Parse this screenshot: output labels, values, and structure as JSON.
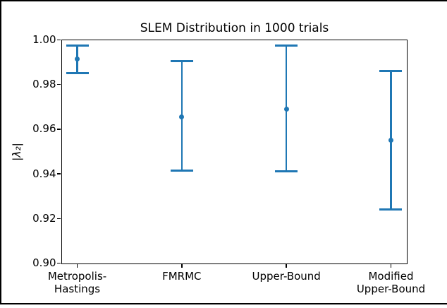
{
  "figure": {
    "background": "#ffffff",
    "border_color": "#000000"
  },
  "chart_data": {
    "type": "scatter",
    "subtype": "errorbar",
    "title": "SLEM Distribution in 1000 trials",
    "xlabel": "",
    "ylabel": "|λ₂|",
    "categories": [
      "Metropolis-\nHastings",
      "FMRMC",
      "Upper-Bound",
      "Modified\nUpper-Bound"
    ],
    "series": [
      {
        "name": "SLEM",
        "color": "#1f77b4",
        "means": [
          0.9915,
          0.9655,
          0.969,
          0.955
        ],
        "upper": [
          0.9975,
          0.9905,
          0.9975,
          0.986
        ],
        "lower": [
          0.985,
          0.9415,
          0.941,
          0.924
        ]
      }
    ],
    "ylim": [
      0.9,
      1.0
    ],
    "yticks": [
      1.0,
      0.98,
      0.96,
      0.94,
      0.92,
      0.9
    ],
    "ytick_labels": [
      "1.00",
      "0.98",
      "0.96",
      "0.94",
      "0.92",
      "0.90"
    ],
    "grid": false,
    "legend_position": "none"
  }
}
